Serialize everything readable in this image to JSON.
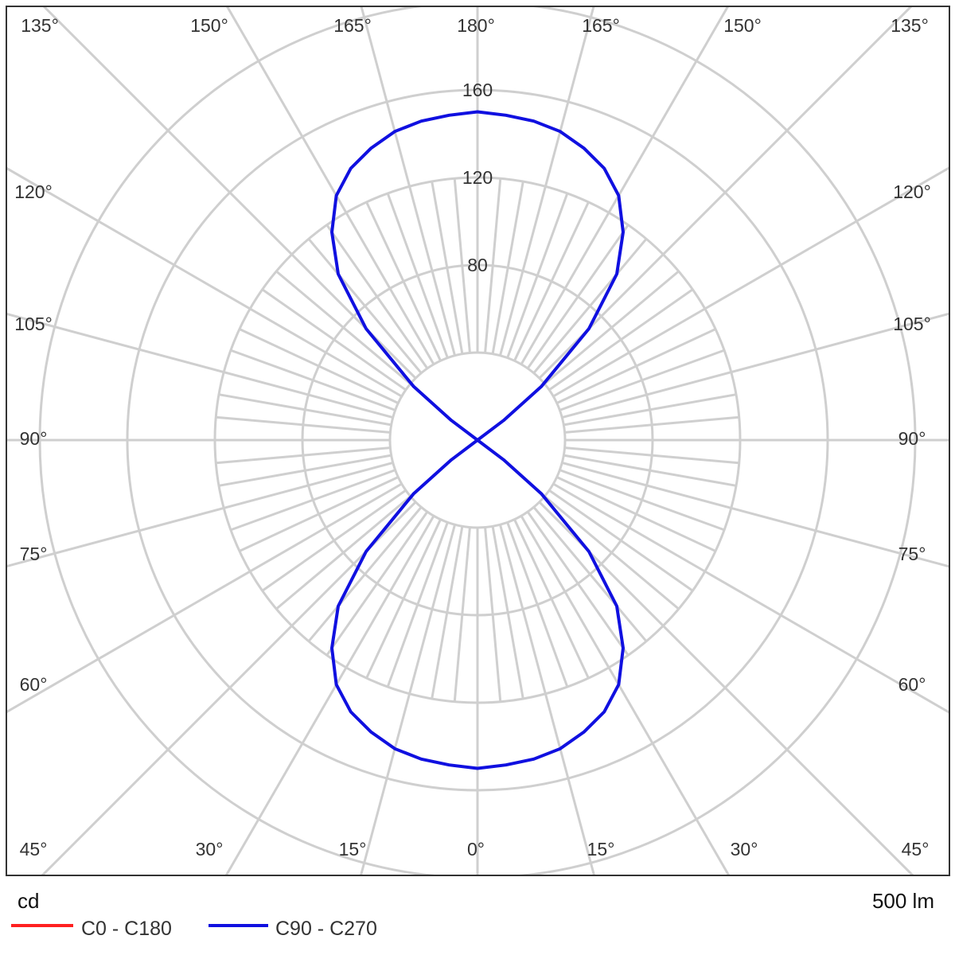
{
  "chart_data": {
    "type": "polar",
    "unit_label": "cd",
    "flux_label": "500 lm",
    "radial_ticks": [
      80,
      120,
      160
    ],
    "radial_grid_step": 40,
    "radial_max": 200,
    "angle_labels": {
      "top": [
        "135°",
        "150°",
        "165°",
        "180°",
        "165°",
        "150°",
        "135°"
      ],
      "left": [
        "120°",
        "105°",
        "90°",
        "75°",
        "60°"
      ],
      "right": [
        "120°",
        "105°",
        "90°",
        "75°",
        "60°"
      ],
      "bottom": [
        "45°",
        "30°",
        "15°",
        "0°",
        "15°",
        "30°",
        "45°"
      ]
    },
    "grid": true,
    "legend_placement": "bottom-left",
    "series": [
      {
        "name": "C0 - C180",
        "color": "#ff2020",
        "gamma": [],
        "values": []
      },
      {
        "name": "C90 - C270",
        "color": "#1010e0",
        "gamma": [
          0,
          5,
          10,
          15,
          20,
          25,
          30,
          35,
          40,
          45,
          50,
          53,
          55,
          60,
          90,
          120,
          125,
          127,
          130,
          135,
          140,
          145,
          150,
          155,
          160,
          165,
          170,
          175,
          180
        ],
        "values": [
          150,
          149,
          148,
          146,
          142,
          137,
          129,
          116,
          99,
          72,
          38,
          15,
          0,
          0,
          0,
          0,
          0,
          15,
          38,
          72,
          99,
          116,
          129,
          137,
          142,
          146,
          148,
          149,
          150
        ]
      }
    ]
  }
}
